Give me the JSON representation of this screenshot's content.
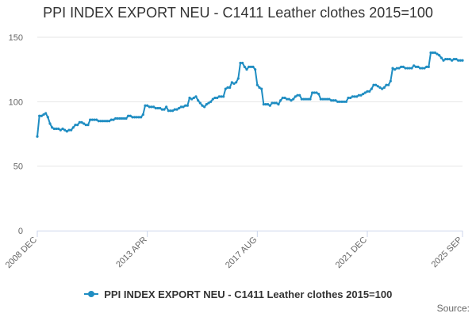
{
  "colors": {
    "series": "#1f8dc2",
    "grid": "#e6e6e6",
    "axis": "#ccd6eb",
    "text": "#333333",
    "muted": "#666666"
  },
  "legend": {
    "label": "PPI INDEX EXPORT NEU - C1411 Leather clothes 2015=100",
    "position": "bottom-center",
    "icon": "line-with-dot-marker"
  },
  "source": {
    "label": "Source:"
  },
  "chart_data": {
    "type": "line",
    "title": "PPI INDEX EXPORT NEU - C1411 Leather clothes 2015=100",
    "xlabel": "",
    "ylabel": "",
    "ylim": [
      0,
      150
    ],
    "yticks": [
      0,
      50,
      100,
      150
    ],
    "xlim": [
      "2008-12",
      "2025-09"
    ],
    "xtick_labels": [
      "2008 DEC",
      "2013 APR",
      "2017 AUG",
      "2021 DEC",
      "2025 SEP"
    ],
    "xtick_dates": [
      "2008-12",
      "2013-04",
      "2017-08",
      "2021-12",
      "2025-09"
    ],
    "grid": true,
    "series": [
      {
        "name": "PPI INDEX EXPORT NEU - C1411 Leather clothes 2015=100",
        "points": [
          [
            "2008-12",
            73
          ],
          [
            "2009-01",
            89
          ],
          [
            "2009-02",
            89
          ],
          [
            "2009-03",
            90
          ],
          [
            "2009-04",
            91
          ],
          [
            "2009-05",
            88
          ],
          [
            "2009-06",
            83
          ],
          [
            "2009-07",
            80
          ],
          [
            "2009-08",
            79
          ],
          [
            "2009-09",
            79
          ],
          [
            "2009-10",
            79
          ],
          [
            "2009-11",
            78
          ],
          [
            "2009-12",
            79
          ],
          [
            "2010-01",
            78
          ],
          [
            "2010-02",
            77
          ],
          [
            "2010-03",
            78
          ],
          [
            "2010-04",
            78
          ],
          [
            "2010-05",
            80
          ],
          [
            "2010-06",
            82
          ],
          [
            "2010-07",
            82
          ],
          [
            "2010-08",
            84
          ],
          [
            "2010-09",
            84
          ],
          [
            "2010-10",
            83
          ],
          [
            "2010-11",
            82
          ],
          [
            "2010-12",
            82
          ],
          [
            "2011-01",
            86
          ],
          [
            "2011-02",
            86
          ],
          [
            "2011-03",
            86
          ],
          [
            "2011-04",
            86
          ],
          [
            "2011-05",
            85
          ],
          [
            "2011-06",
            85
          ],
          [
            "2011-07",
            85
          ],
          [
            "2011-08",
            85
          ],
          [
            "2011-09",
            85
          ],
          [
            "2011-10",
            85
          ],
          [
            "2011-11",
            86
          ],
          [
            "2011-12",
            86
          ],
          [
            "2012-01",
            87
          ],
          [
            "2012-02",
            87
          ],
          [
            "2012-03",
            87
          ],
          [
            "2012-04",
            87
          ],
          [
            "2012-05",
            87
          ],
          [
            "2012-06",
            87
          ],
          [
            "2012-07",
            89
          ],
          [
            "2012-08",
            89
          ],
          [
            "2012-09",
            88
          ],
          [
            "2012-10",
            88
          ],
          [
            "2012-11",
            88
          ],
          [
            "2012-12",
            88
          ],
          [
            "2013-01",
            88
          ],
          [
            "2013-02",
            90
          ],
          [
            "2013-03",
            97
          ],
          [
            "2013-04",
            97
          ],
          [
            "2013-05",
            96
          ],
          [
            "2013-06",
            96
          ],
          [
            "2013-07",
            96
          ],
          [
            "2013-08",
            95
          ],
          [
            "2013-09",
            95
          ],
          [
            "2013-10",
            95
          ],
          [
            "2013-11",
            94
          ],
          [
            "2013-12",
            94
          ],
          [
            "2014-01",
            96
          ],
          [
            "2014-02",
            93
          ],
          [
            "2014-03",
            93
          ],
          [
            "2014-04",
            93
          ],
          [
            "2014-05",
            94
          ],
          [
            "2014-06",
            94
          ],
          [
            "2014-07",
            95
          ],
          [
            "2014-08",
            96
          ],
          [
            "2014-09",
            96
          ],
          [
            "2014-10",
            97
          ],
          [
            "2014-11",
            97
          ],
          [
            "2014-12",
            103
          ],
          [
            "2015-01",
            102
          ],
          [
            "2015-02",
            103
          ],
          [
            "2015-03",
            104
          ],
          [
            "2015-04",
            101
          ],
          [
            "2015-05",
            99
          ],
          [
            "2015-06",
            97
          ],
          [
            "2015-07",
            96
          ],
          [
            "2015-08",
            98
          ],
          [
            "2015-09",
            99
          ],
          [
            "2015-10",
            100
          ],
          [
            "2015-11",
            102
          ],
          [
            "2015-12",
            103
          ],
          [
            "2016-01",
            103
          ],
          [
            "2016-02",
            104
          ],
          [
            "2016-03",
            104
          ],
          [
            "2016-04",
            104
          ],
          [
            "2016-05",
            110
          ],
          [
            "2016-06",
            111
          ],
          [
            "2016-07",
            111
          ],
          [
            "2016-08",
            115
          ],
          [
            "2016-09",
            114
          ],
          [
            "2016-10",
            115
          ],
          [
            "2016-11",
            118
          ],
          [
            "2016-12",
            130
          ],
          [
            "2017-01",
            130
          ],
          [
            "2017-02",
            127
          ],
          [
            "2017-03",
            125
          ],
          [
            "2017-04",
            127
          ],
          [
            "2017-05",
            127
          ],
          [
            "2017-06",
            127
          ],
          [
            "2017-07",
            125
          ],
          [
            "2017-08",
            113
          ],
          [
            "2017-09",
            111
          ],
          [
            "2017-10",
            110
          ],
          [
            "2017-11",
            98
          ],
          [
            "2017-12",
            98
          ],
          [
            "2018-01",
            98
          ],
          [
            "2018-02",
            97
          ],
          [
            "2018-03",
            99
          ],
          [
            "2018-04",
            99
          ],
          [
            "2018-05",
            99
          ],
          [
            "2018-06",
            98
          ],
          [
            "2018-07",
            101
          ],
          [
            "2018-08",
            103
          ],
          [
            "2018-09",
            103
          ],
          [
            "2018-10",
            102
          ],
          [
            "2018-11",
            102
          ],
          [
            "2018-12",
            101
          ],
          [
            "2019-01",
            102
          ],
          [
            "2019-02",
            104
          ],
          [
            "2019-03",
            105
          ],
          [
            "2019-04",
            105
          ],
          [
            "2019-05",
            102
          ],
          [
            "2019-06",
            102
          ],
          [
            "2019-07",
            102
          ],
          [
            "2019-08",
            102
          ],
          [
            "2019-09",
            102
          ],
          [
            "2019-10",
            107
          ],
          [
            "2019-11",
            107
          ],
          [
            "2019-12",
            107
          ],
          [
            "2020-01",
            106
          ],
          [
            "2020-02",
            102
          ],
          [
            "2020-03",
            102
          ],
          [
            "2020-04",
            102
          ],
          [
            "2020-05",
            102
          ],
          [
            "2020-06",
            102
          ],
          [
            "2020-07",
            101
          ],
          [
            "2020-08",
            101
          ],
          [
            "2020-09",
            101
          ],
          [
            "2020-10",
            100
          ],
          [
            "2020-11",
            100
          ],
          [
            "2020-12",
            100
          ],
          [
            "2021-01",
            100
          ],
          [
            "2021-02",
            100
          ],
          [
            "2021-03",
            103
          ],
          [
            "2021-04",
            103
          ],
          [
            "2021-05",
            104
          ],
          [
            "2021-06",
            104
          ],
          [
            "2021-07",
            104
          ],
          [
            "2021-08",
            105
          ],
          [
            "2021-09",
            105
          ],
          [
            "2021-10",
            106
          ],
          [
            "2021-11",
            107
          ],
          [
            "2021-12",
            108
          ],
          [
            "2022-01",
            108
          ],
          [
            "2022-02",
            110
          ],
          [
            "2022-03",
            113
          ],
          [
            "2022-04",
            113
          ],
          [
            "2022-05",
            112
          ],
          [
            "2022-06",
            111
          ],
          [
            "2022-07",
            110
          ],
          [
            "2022-08",
            111
          ],
          [
            "2022-09",
            113
          ],
          [
            "2022-10",
            113
          ],
          [
            "2022-11",
            116
          ],
          [
            "2022-12",
            126
          ],
          [
            "2023-01",
            125
          ],
          [
            "2023-02",
            126
          ],
          [
            "2023-03",
            126
          ],
          [
            "2023-04",
            127
          ],
          [
            "2023-05",
            127
          ],
          [
            "2023-06",
            126
          ],
          [
            "2023-07",
            126
          ],
          [
            "2023-08",
            126
          ],
          [
            "2023-09",
            126
          ],
          [
            "2023-10",
            128
          ],
          [
            "2023-11",
            127
          ],
          [
            "2023-12",
            127
          ],
          [
            "2024-01",
            126
          ],
          [
            "2024-02",
            126
          ],
          [
            "2024-03",
            126
          ],
          [
            "2024-04",
            127
          ],
          [
            "2024-05",
            127
          ],
          [
            "2024-06",
            138
          ],
          [
            "2024-07",
            138
          ],
          [
            "2024-08",
            138
          ],
          [
            "2024-09",
            137
          ],
          [
            "2024-10",
            136
          ],
          [
            "2024-11",
            134
          ],
          [
            "2024-12",
            132
          ],
          [
            "2025-01",
            133
          ],
          [
            "2025-02",
            133
          ],
          [
            "2025-03",
            133
          ],
          [
            "2025-04",
            132
          ],
          [
            "2025-05",
            133
          ],
          [
            "2025-06",
            133
          ],
          [
            "2025-07",
            132
          ],
          [
            "2025-08",
            132
          ],
          [
            "2025-09",
            132
          ]
        ]
      }
    ]
  }
}
